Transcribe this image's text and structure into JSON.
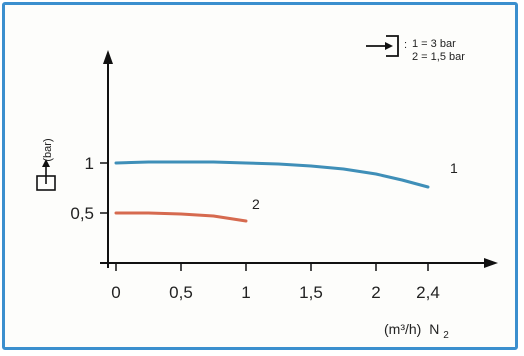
{
  "chart_data": {
    "type": "line",
    "x_ticks": [
      "0",
      "0,5",
      "1",
      "1,5",
      "2",
      "2,4"
    ],
    "y_ticks": [
      "0,5",
      "1"
    ],
    "xlabel_unit": "(m³/h)",
    "xlabel_gas": "N",
    "xlabel_gas_sub": "2",
    "ylabel": "(bar)",
    "xlim": [
      0,
      2.6
    ],
    "ylim": [
      0,
      1.8
    ],
    "legend": {
      "icon": "inlet-pressure-icon",
      "separator": ":",
      "entries": [
        "1 = 3 bar",
        "2 = 1,5 bar"
      ]
    },
    "series": [
      {
        "label": "1",
        "color": "#3f8fb8",
        "x": [
          0,
          0.25,
          0.5,
          0.75,
          1.0,
          1.25,
          1.5,
          1.75,
          2.0,
          2.2,
          2.4
        ],
        "y": [
          1.0,
          1.01,
          1.01,
          1.01,
          1.0,
          0.99,
          0.97,
          0.94,
          0.89,
          0.83,
          0.76
        ]
      },
      {
        "label": "2",
        "color": "#d66a4f",
        "x": [
          0,
          0.25,
          0.5,
          0.75,
          1.0
        ],
        "y": [
          0.5,
          0.5,
          0.49,
          0.47,
          0.42
        ]
      }
    ],
    "y_axis_icon": "outlet-pressure-icon",
    "grid": false
  }
}
